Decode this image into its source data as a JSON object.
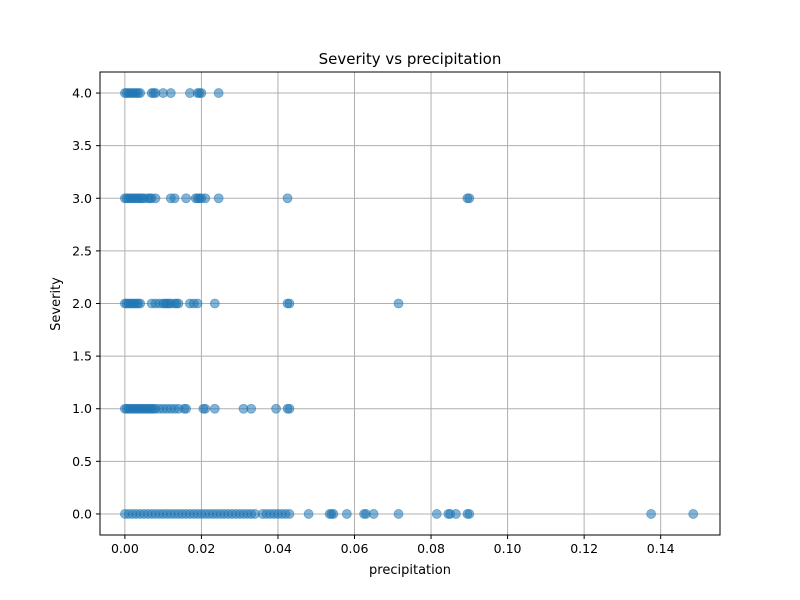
{
  "chart_data": {
    "type": "scatter",
    "title": "Severity vs precipitation",
    "xlabel": "precipitation",
    "ylabel": "Severity",
    "xlim": [
      -0.0065,
      0.1555
    ],
    "ylim": [
      -0.2,
      4.2
    ],
    "x_ticks": [
      0.0,
      0.02,
      0.04,
      0.06,
      0.08,
      0.1,
      0.12,
      0.14
    ],
    "x_tick_labels": [
      "0.00",
      "0.02",
      "0.04",
      "0.06",
      "0.08",
      "0.10",
      "0.12",
      "0.14"
    ],
    "y_ticks": [
      0.0,
      0.5,
      1.0,
      1.5,
      2.0,
      2.5,
      3.0,
      3.5,
      4.0
    ],
    "y_tick_labels": [
      "0.0",
      "0.5",
      "1.0",
      "1.5",
      "2.0",
      "2.5",
      "3.0",
      "3.5",
      "4.0"
    ],
    "grid": true,
    "legend": "none",
    "marker_color": "#1f77b4",
    "marker_alpha": 0.55,
    "series": [
      {
        "points": [
          [
            0.0,
            4
          ],
          [
            0.0005,
            4
          ],
          [
            0.001,
            4
          ],
          [
            0.0015,
            4
          ],
          [
            0.002,
            4
          ],
          [
            0.0025,
            4
          ],
          [
            0.003,
            4
          ],
          [
            0.0035,
            4
          ],
          [
            0.004,
            4
          ],
          [
            0.007,
            4
          ],
          [
            0.0075,
            4
          ],
          [
            0.008,
            4
          ],
          [
            0.01,
            4
          ],
          [
            0.012,
            4
          ],
          [
            0.017,
            4
          ],
          [
            0.019,
            4
          ],
          [
            0.0195,
            4
          ],
          [
            0.02,
            4
          ],
          [
            0.0245,
            4
          ],
          [
            0.0,
            3
          ],
          [
            0.0005,
            3
          ],
          [
            0.001,
            3
          ],
          [
            0.0015,
            3
          ],
          [
            0.002,
            3
          ],
          [
            0.0025,
            3
          ],
          [
            0.003,
            3
          ],
          [
            0.0035,
            3
          ],
          [
            0.004,
            3
          ],
          [
            0.0045,
            3
          ],
          [
            0.005,
            3
          ],
          [
            0.006,
            3
          ],
          [
            0.0065,
            3
          ],
          [
            0.007,
            3
          ],
          [
            0.008,
            3
          ],
          [
            0.012,
            3
          ],
          [
            0.013,
            3
          ],
          [
            0.016,
            3
          ],
          [
            0.0185,
            3
          ],
          [
            0.019,
            3
          ],
          [
            0.0195,
            3
          ],
          [
            0.02,
            3
          ],
          [
            0.021,
            3
          ],
          [
            0.0245,
            3
          ],
          [
            0.0425,
            3
          ],
          [
            0.0895,
            3
          ],
          [
            0.09,
            3
          ],
          [
            0.0,
            2
          ],
          [
            0.0005,
            2
          ],
          [
            0.001,
            2
          ],
          [
            0.0015,
            2
          ],
          [
            0.002,
            2
          ],
          [
            0.0025,
            2
          ],
          [
            0.003,
            2
          ],
          [
            0.0035,
            2
          ],
          [
            0.004,
            2
          ],
          [
            0.007,
            2
          ],
          [
            0.008,
            2
          ],
          [
            0.009,
            2
          ],
          [
            0.01,
            2
          ],
          [
            0.0105,
            2
          ],
          [
            0.011,
            2
          ],
          [
            0.0115,
            2
          ],
          [
            0.012,
            2
          ],
          [
            0.013,
            2
          ],
          [
            0.0135,
            2
          ],
          [
            0.014,
            2
          ],
          [
            0.017,
            2
          ],
          [
            0.018,
            2
          ],
          [
            0.019,
            2
          ],
          [
            0.0235,
            2
          ],
          [
            0.0425,
            2
          ],
          [
            0.043,
            2
          ],
          [
            0.0715,
            2
          ],
          [
            0.0,
            1
          ],
          [
            0.0005,
            1
          ],
          [
            0.001,
            1
          ],
          [
            0.0015,
            1
          ],
          [
            0.002,
            1
          ],
          [
            0.0025,
            1
          ],
          [
            0.003,
            1
          ],
          [
            0.0035,
            1
          ],
          [
            0.004,
            1
          ],
          [
            0.0045,
            1
          ],
          [
            0.005,
            1
          ],
          [
            0.0055,
            1
          ],
          [
            0.006,
            1
          ],
          [
            0.0065,
            1
          ],
          [
            0.007,
            1
          ],
          [
            0.0075,
            1
          ],
          [
            0.008,
            1
          ],
          [
            0.009,
            1
          ],
          [
            0.01,
            1
          ],
          [
            0.011,
            1
          ],
          [
            0.012,
            1
          ],
          [
            0.013,
            1
          ],
          [
            0.014,
            1
          ],
          [
            0.0155,
            1
          ],
          [
            0.016,
            1
          ],
          [
            0.0205,
            1
          ],
          [
            0.021,
            1
          ],
          [
            0.0235,
            1
          ],
          [
            0.031,
            1
          ],
          [
            0.033,
            1
          ],
          [
            0.0395,
            1
          ],
          [
            0.0425,
            1
          ],
          [
            0.043,
            1
          ],
          [
            0.0,
            0
          ],
          [
            0.001,
            0
          ],
          [
            0.002,
            0
          ],
          [
            0.003,
            0
          ],
          [
            0.004,
            0
          ],
          [
            0.005,
            0
          ],
          [
            0.006,
            0
          ],
          [
            0.007,
            0
          ],
          [
            0.008,
            0
          ],
          [
            0.009,
            0
          ],
          [
            0.01,
            0
          ],
          [
            0.011,
            0
          ],
          [
            0.012,
            0
          ],
          [
            0.013,
            0
          ],
          [
            0.014,
            0
          ],
          [
            0.015,
            0
          ],
          [
            0.016,
            0
          ],
          [
            0.017,
            0
          ],
          [
            0.018,
            0
          ],
          [
            0.019,
            0
          ],
          [
            0.02,
            0
          ],
          [
            0.021,
            0
          ],
          [
            0.022,
            0
          ],
          [
            0.023,
            0
          ],
          [
            0.024,
            0
          ],
          [
            0.025,
            0
          ],
          [
            0.026,
            0
          ],
          [
            0.027,
            0
          ],
          [
            0.028,
            0
          ],
          [
            0.029,
            0
          ],
          [
            0.03,
            0
          ],
          [
            0.031,
            0
          ],
          [
            0.032,
            0
          ],
          [
            0.033,
            0
          ],
          [
            0.034,
            0
          ],
          [
            0.036,
            0
          ],
          [
            0.037,
            0
          ],
          [
            0.038,
            0
          ],
          [
            0.039,
            0
          ],
          [
            0.04,
            0
          ],
          [
            0.041,
            0
          ],
          [
            0.042,
            0
          ],
          [
            0.043,
            0
          ],
          [
            0.048,
            0
          ],
          [
            0.0535,
            0
          ],
          [
            0.054,
            0
          ],
          [
            0.0545,
            0
          ],
          [
            0.058,
            0
          ],
          [
            0.0625,
            0
          ],
          [
            0.063,
            0
          ],
          [
            0.065,
            0
          ],
          [
            0.0715,
            0
          ],
          [
            0.0815,
            0
          ],
          [
            0.0845,
            0
          ],
          [
            0.085,
            0
          ],
          [
            0.0865,
            0
          ],
          [
            0.0895,
            0
          ],
          [
            0.09,
            0
          ],
          [
            0.1375,
            0
          ],
          [
            0.1485,
            0
          ]
        ]
      }
    ]
  }
}
